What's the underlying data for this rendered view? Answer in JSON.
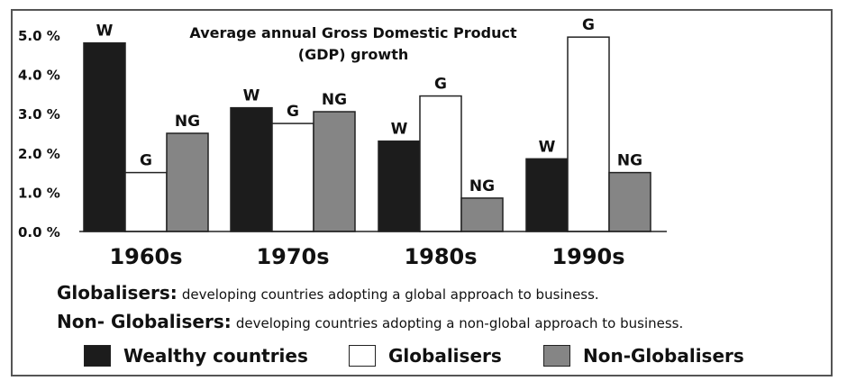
{
  "chart_data": {
    "type": "bar",
    "title_lines": [
      "Average annual Gross Domestic Product",
      "(GDP) growth"
    ],
    "categories": [
      "1960s",
      "1970s",
      "1980s",
      "1990s"
    ],
    "series": [
      {
        "name": "Wealthy countries",
        "code": "W",
        "color": "#1c1c1c",
        "values": [
          4.8,
          3.15,
          2.3,
          1.85
        ]
      },
      {
        "name": "Globalisers",
        "code": "G",
        "color": "#ffffff",
        "values": [
          1.5,
          2.75,
          3.45,
          4.95
        ]
      },
      {
        "name": "Non-Globalisers",
        "code": "NG",
        "color": "#858585",
        "values": [
          2.5,
          3.05,
          0.85,
          1.5
        ]
      }
    ],
    "yticks": [
      "0.0 %",
      "1.0 %",
      "2.0 %",
      "3.0 %",
      "4.0 %",
      "5.0 %"
    ],
    "ylim": [
      0,
      5.3
    ],
    "xlabel": "",
    "ylabel": ""
  },
  "notes": [
    {
      "term": "Globalisers:",
      "desc": "developing countries adopting a global approach to business."
    },
    {
      "term": "Non- Globalisers:",
      "desc": "developing countries  adopting a non-global approach to business."
    }
  ],
  "legend": [
    {
      "label": "Wealthy countries",
      "color": "#1c1c1c"
    },
    {
      "label": "Globalisers",
      "color": "#ffffff"
    },
    {
      "label": "Non-Globalisers",
      "color": "#858585"
    }
  ]
}
